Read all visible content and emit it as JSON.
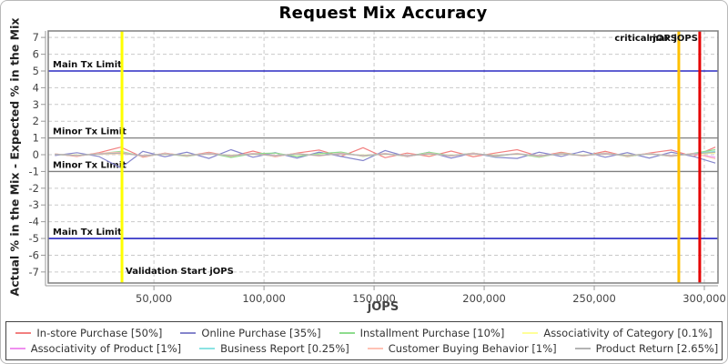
{
  "chart_data": {
    "type": "line",
    "title": "Request Mix Accuracy",
    "xlabel": "jOPS",
    "ylabel": "Actual % in the Mix - Expected % in the Mix",
    "xlim": [
      2000,
      306200
    ],
    "ylim": [
      -7.66,
      7.39
    ],
    "x_ticks": [
      50000,
      100000,
      150000,
      200000,
      250000,
      300000
    ],
    "x_tick_labels": [
      "50,000",
      "100,000",
      "150,000",
      "200,000",
      "250,000",
      "300,000"
    ],
    "y_ticks": [
      -7,
      -6,
      -5,
      -4,
      -3,
      -2,
      -1,
      0,
      1,
      2,
      3,
      4,
      5,
      6,
      7
    ],
    "grid": {
      "on": true,
      "h_dashed": [
        -7,
        -6,
        -4,
        -3,
        -2,
        0,
        2,
        3,
        4,
        6,
        7
      ],
      "v_dashed": [
        50000,
        100000,
        150000,
        200000,
        250000,
        300000
      ],
      "grid_color": "#c9c9c9",
      "border_color": "#808080"
    },
    "limit_lines": [
      {
        "y": 5,
        "color": "#0000b8",
        "label": "Main Tx Limit"
      },
      {
        "y": 1,
        "color": "#808080",
        "label": "Minor Tx Limit"
      },
      {
        "y": -1,
        "color": "#808080",
        "label": "Minor Tx Limit"
      },
      {
        "y": -5,
        "color": "#0000b8",
        "label": "Main Tx Limit"
      }
    ],
    "markers": [
      {
        "x": 35500,
        "color": "#ffff00",
        "label": "Validation Start jOPS",
        "label_pos": "bottom-right"
      },
      {
        "x": 288400,
        "color": "#ffc000",
        "label": "critical jOPS",
        "label_pos": "top-left"
      },
      {
        "x": 297900,
        "color": "#e60000",
        "label": "max jOPS",
        "label_pos": "top-left"
      }
    ],
    "legend_position": "bottom",
    "x": [
      5000,
      15000,
      25000,
      35000,
      45000,
      55000,
      65000,
      75000,
      85000,
      95000,
      105000,
      115000,
      125000,
      135000,
      145000,
      155000,
      165000,
      175000,
      185000,
      195000,
      205000,
      215000,
      225000,
      235000,
      245000,
      255000,
      265000,
      275000,
      285000,
      295000,
      305000
    ],
    "series": [
      {
        "name": "In-store Purchase [50%]",
        "color": "#f28080",
        "values": [
          0.05,
          -0.1,
          0.12,
          0.45,
          -0.15,
          0.1,
          -0.08,
          0.15,
          -0.1,
          0.22,
          -0.12,
          0.1,
          0.28,
          -0.1,
          0.42,
          -0.18,
          0.1,
          -0.1,
          0.22,
          -0.12,
          0.1,
          0.3,
          -0.1,
          0.15,
          -0.08,
          0.2,
          -0.12,
          0.1,
          0.28,
          -0.1,
          0.45
        ]
      },
      {
        "name": "Online Purchase [35%]",
        "color": "#8585cc",
        "values": [
          -0.05,
          0.12,
          -0.1,
          -0.78,
          0.2,
          -0.12,
          0.15,
          -0.22,
          0.3,
          -0.15,
          0.12,
          -0.2,
          0.15,
          -0.1,
          -0.35,
          0.25,
          -0.12,
          0.15,
          -0.2,
          0.1,
          -0.15,
          -0.22,
          0.15,
          -0.1,
          0.2,
          -0.15,
          0.12,
          -0.2,
          0.15,
          -0.1,
          -0.5
        ]
      },
      {
        "name": "Installment Purchase [10%]",
        "color": "#8edc8e",
        "values": [
          0.02,
          -0.06,
          0.06,
          0.2,
          -0.1,
          0.06,
          -0.1,
          0.1,
          -0.16,
          0.06,
          0.1,
          -0.1,
          0.06,
          0.16,
          -0.1,
          0.06,
          -0.1,
          0.15,
          -0.06,
          0.1,
          -0.1,
          0.06,
          -0.15,
          0.1,
          -0.06,
          0.1,
          -0.1,
          0.06,
          -0.1,
          0.08,
          0.3
        ]
      },
      {
        "name": "Associativity of Category [0.1%]",
        "color": "#ffff99",
        "values": [
          0.02,
          -0.02,
          0.02,
          0.05,
          -0.03,
          0.02,
          -0.02,
          0.03,
          -0.02,
          0.02,
          -0.03,
          0.02,
          -0.02,
          0.03,
          -0.02,
          0.02,
          -0.03,
          0.02,
          -0.02,
          0.03,
          -0.02,
          0.02,
          -0.03,
          0.02,
          -0.02,
          0.03,
          -0.02,
          0.02,
          -0.03,
          0.02,
          0.1
        ]
      },
      {
        "name": "Associativity of Product [1%]",
        "color": "#ef8fef",
        "values": [
          0.03,
          -0.04,
          0.04,
          0.08,
          -0.05,
          0.04,
          -0.04,
          0.05,
          -0.04,
          0.04,
          -0.05,
          0.04,
          -0.04,
          0.05,
          -0.04,
          0.04,
          -0.05,
          0.04,
          -0.04,
          0.05,
          -0.04,
          0.04,
          -0.05,
          0.04,
          -0.04,
          0.05,
          -0.04,
          0.04,
          -0.05,
          0.04,
          -0.15
        ]
      },
      {
        "name": "Business Report [0.25%]",
        "color": "#8be3e3",
        "values": [
          0.04,
          -0.06,
          0.06,
          0.12,
          -0.08,
          0.06,
          -0.06,
          0.08,
          -0.06,
          0.06,
          -0.08,
          0.06,
          -0.06,
          0.08,
          -0.06,
          0.06,
          -0.08,
          0.06,
          -0.06,
          0.08,
          -0.06,
          0.06,
          -0.08,
          0.06,
          -0.06,
          0.08,
          -0.06,
          0.06,
          -0.08,
          0.06,
          0.2
        ]
      },
      {
        "name": "Customer Buying Behavior [1%]",
        "color": "#ffc2b5",
        "values": [
          0.05,
          -0.08,
          0.08,
          0.15,
          -0.1,
          0.08,
          -0.08,
          0.1,
          -0.08,
          0.08,
          -0.1,
          0.08,
          -0.08,
          0.1,
          -0.08,
          0.08,
          -0.1,
          0.08,
          -0.08,
          0.1,
          -0.08,
          0.08,
          -0.1,
          0.08,
          -0.08,
          0.1,
          -0.08,
          0.08,
          -0.1,
          0.08,
          -0.25
        ]
      },
      {
        "name": "Product Return [2.65%]",
        "color": "#b3b3b3",
        "values": [
          0.03,
          -0.05,
          0.05,
          0.1,
          -0.06,
          0.05,
          -0.05,
          0.06,
          -0.05,
          0.05,
          -0.06,
          0.05,
          -0.05,
          0.06,
          -0.05,
          0.05,
          -0.06,
          0.05,
          -0.05,
          0.06,
          -0.05,
          0.05,
          -0.06,
          0.05,
          -0.05,
          0.06,
          -0.05,
          0.05,
          -0.06,
          0.05,
          0.15
        ]
      }
    ]
  }
}
